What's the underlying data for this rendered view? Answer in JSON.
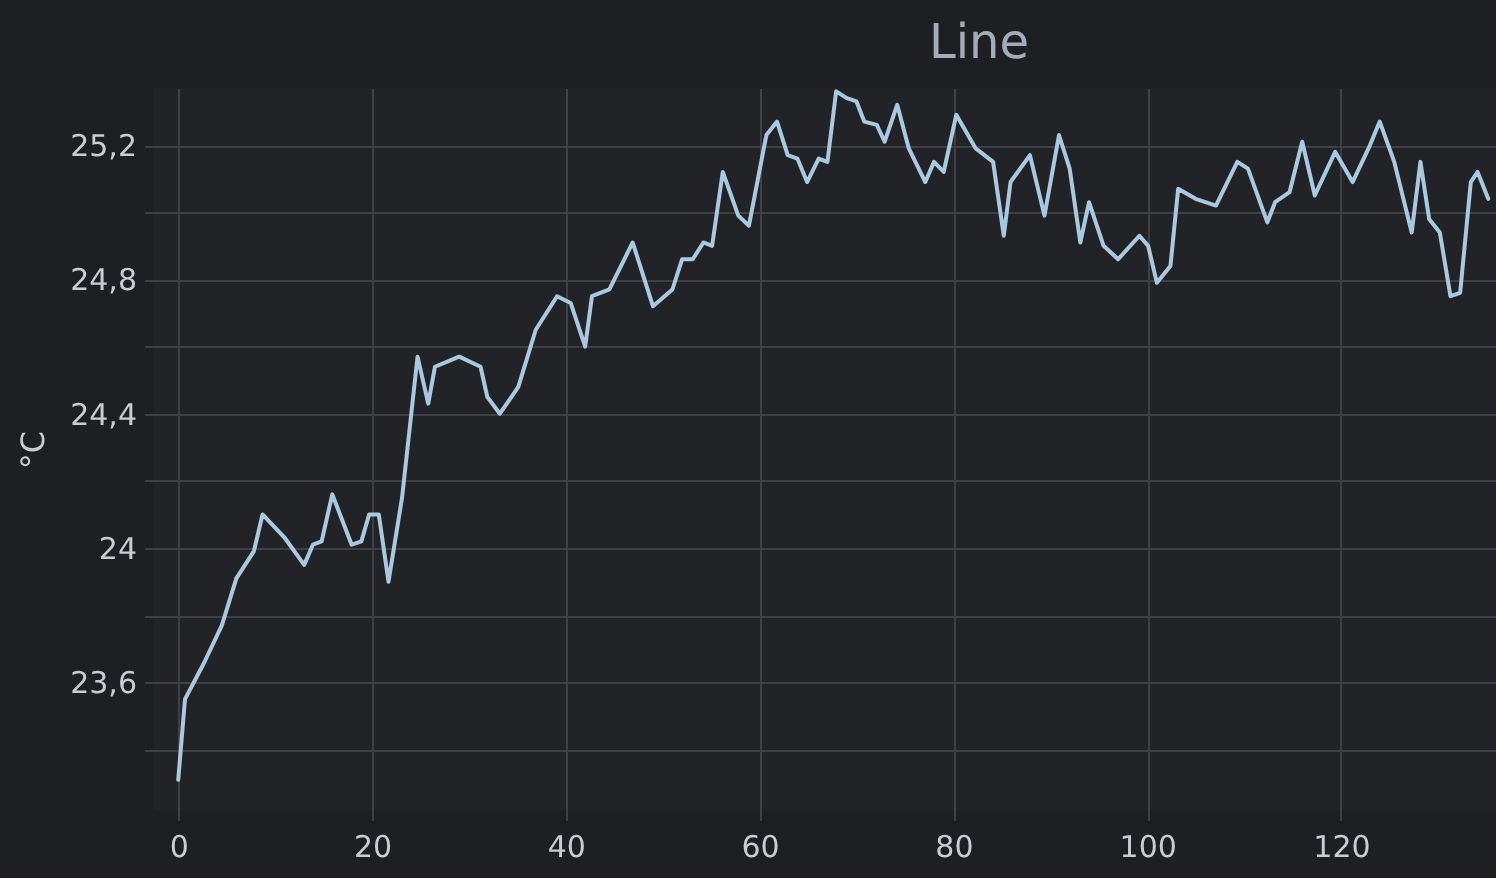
{
  "chart_data": {
    "type": "line",
    "title": "Line",
    "ylabel": "°C",
    "x": [
      0,
      0.7,
      2.7,
      4.5,
      6,
      7.8,
      8.7,
      11,
      13,
      13.9,
      14.8,
      15.9,
      17.9,
      18.9,
      19.7,
      20.7,
      21.7,
      23.1,
      24.7,
      25.8,
      26.5,
      29,
      31.2,
      31.9,
      33.2,
      35.1,
      36.9,
      39.1,
      40.5,
      42,
      42.7,
      44.5,
      46.9,
      49,
      51,
      52,
      53.1,
      54.2,
      55.1,
      56.2,
      57.8,
      58.9,
      60.7,
      61.8,
      62.9,
      63.9,
      64.9,
      66.1,
      67,
      67.9,
      69,
      70,
      70.8,
      72.1,
      72.9,
      74.2,
      75.4,
      77.1,
      78,
      79,
      80.3,
      82.3,
      84.1,
      85.2,
      85.9,
      87.9,
      89.4,
      90.9,
      92,
      93.1,
      94,
      95.5,
      97,
      99.2,
      100.1,
      101,
      102.4,
      103.2,
      105,
      107.1,
      109.3,
      110.4,
      112.4,
      113.2,
      114.7,
      116,
      117.3,
      119.4,
      121.2,
      123,
      124,
      125.5,
      127.3,
      128.2,
      129.1,
      130.2,
      131.3,
      132.3,
      133.4,
      134.1,
      135.2
    ],
    "series": [
      {
        "color": "#a9c9e0",
        "values": [
          23.31,
          23.55,
          23.66,
          23.77,
          23.91,
          23.99,
          24.1,
          24.03,
          23.95,
          24.01,
          24.02,
          24.16,
          24.01,
          24.02,
          24.1,
          24.1,
          23.9,
          24.15,
          24.57,
          24.43,
          24.54,
          24.57,
          24.54,
          24.45,
          24.4,
          24.48,
          24.65,
          24.75,
          24.73,
          24.6,
          24.75,
          24.77,
          24.91,
          24.72,
          24.77,
          24.86,
          24.86,
          24.91,
          24.9,
          25.12,
          24.99,
          24.96,
          25.23,
          25.27,
          25.17,
          25.16,
          25.09,
          25.16,
          25.15,
          25.36,
          25.34,
          25.33,
          25.27,
          25.26,
          25.21,
          25.32,
          25.19,
          25.09,
          25.15,
          25.12,
          25.29,
          25.19,
          25.15,
          24.93,
          25.09,
          25.17,
          24.99,
          25.23,
          25.13,
          24.91,
          25.03,
          24.9,
          24.86,
          24.93,
          24.9,
          24.79,
          24.84,
          25.07,
          25.04,
          25.02,
          25.15,
          25.13,
          24.97,
          25.03,
          25.06,
          25.21,
          25.05,
          25.18,
          25.09,
          25.2,
          25.27,
          25.15,
          24.94,
          25.15,
          24.98,
          24.94,
          24.75,
          24.76,
          25.09,
          25.12,
          25.04
        ]
      }
    ],
    "xlim": [
      -2.5,
      136
    ],
    "xticks": [
      0,
      20,
      40,
      60,
      80,
      100,
      120
    ],
    "ylim": [
      23.22,
      25.37
    ],
    "yticks": [
      {
        "value": 23.4,
        "label": null
      },
      {
        "value": 23.6,
        "label": "23,6"
      },
      {
        "value": 23.8,
        "label": null
      },
      24,
      {
        "value": 24.2,
        "label": null
      },
      {
        "value": 24.4,
        "label": "24,4"
      },
      {
        "value": 24.6,
        "label": null
      },
      {
        "value": 24.8,
        "label": "24,8"
      },
      {
        "value": 25.0,
        "label": null
      },
      {
        "value": 25.2,
        "label": "25,2"
      }
    ],
    "grid": true,
    "line_style": "solid"
  }
}
